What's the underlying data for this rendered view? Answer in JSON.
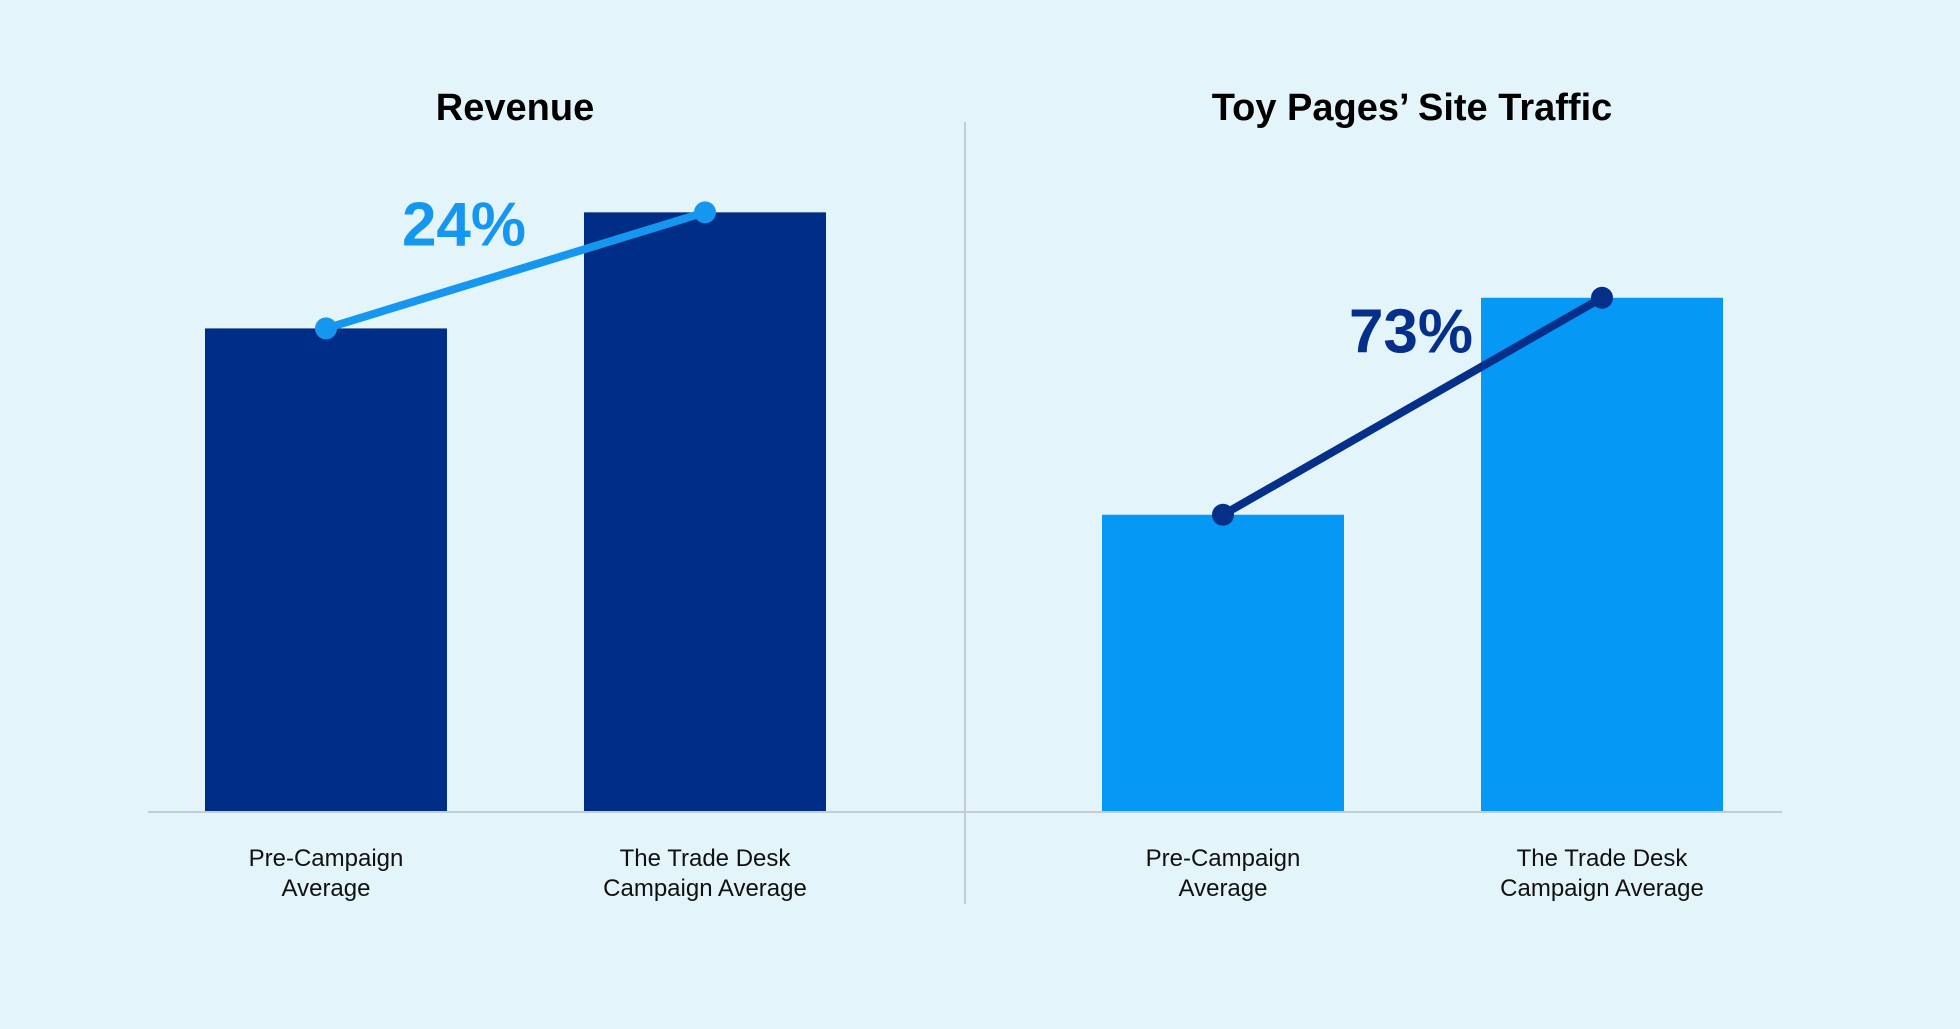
{
  "chart_data": [
    {
      "type": "bar",
      "title": "Revenue",
      "categories": [
        "Pre-Campaign\nAverage",
        "The Trade Desk\nCampaign Average"
      ],
      "values": [
        100,
        124
      ],
      "color": "#002d85",
      "line_color": "#1697ef",
      "annotation": "24%",
      "ylim": [
        0,
        134
      ]
    },
    {
      "type": "bar",
      "title": "Toy Pages’ Site Traffic",
      "categories": [
        "Pre-Campaign\nAverage",
        "The Trade Desk\nCampaign Average"
      ],
      "values": [
        100,
        173
      ],
      "color": "#0598f5",
      "line_color": "#062f8a",
      "annotation": "73%",
      "ylim": [
        0,
        218
      ]
    }
  ]
}
